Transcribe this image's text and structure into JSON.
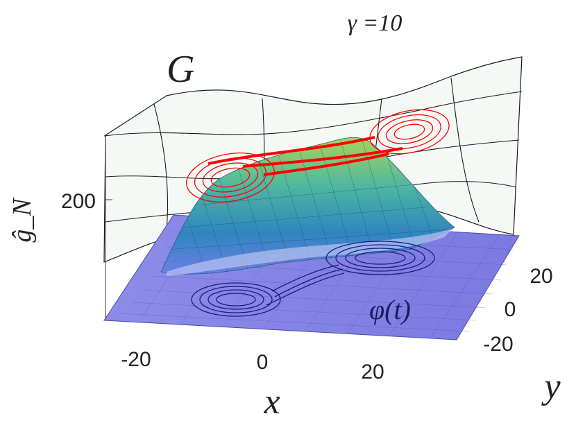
{
  "chart_data": {
    "type": "surface",
    "title": "γ =10",
    "xlabel": "x",
    "ylabel": "y",
    "zlabel": "ĝ_N",
    "x_ticks": [
      "-20",
      "0",
      "20"
    ],
    "y_ticks": [
      "-20",
      "0",
      "20"
    ],
    "z_ticks": [
      "200"
    ],
    "annotations": {
      "manifold": "G",
      "trajectory": "φ(t)"
    },
    "series": [
      {
        "name": "",
        "kind": "manifold-grid",
        "color": "#000000"
      },
      {
        "name": "",
        "kind": "surface",
        "color": "#5fc29a"
      },
      {
        "name": "",
        "kind": "attractor-lifted",
        "color": "#ff0000"
      },
      {
        "name": "",
        "kind": "attractor-projected",
        "color": "#1a1a80"
      }
    ],
    "colors": {
      "surface_low": "#7b7bea",
      "surface_mid": "#2e8bb5",
      "surface_high": "#8fcf5a",
      "attractor_lifted": "#ff0000",
      "attractor_projected": "#1a1a80",
      "grid": "#111111"
    }
  }
}
